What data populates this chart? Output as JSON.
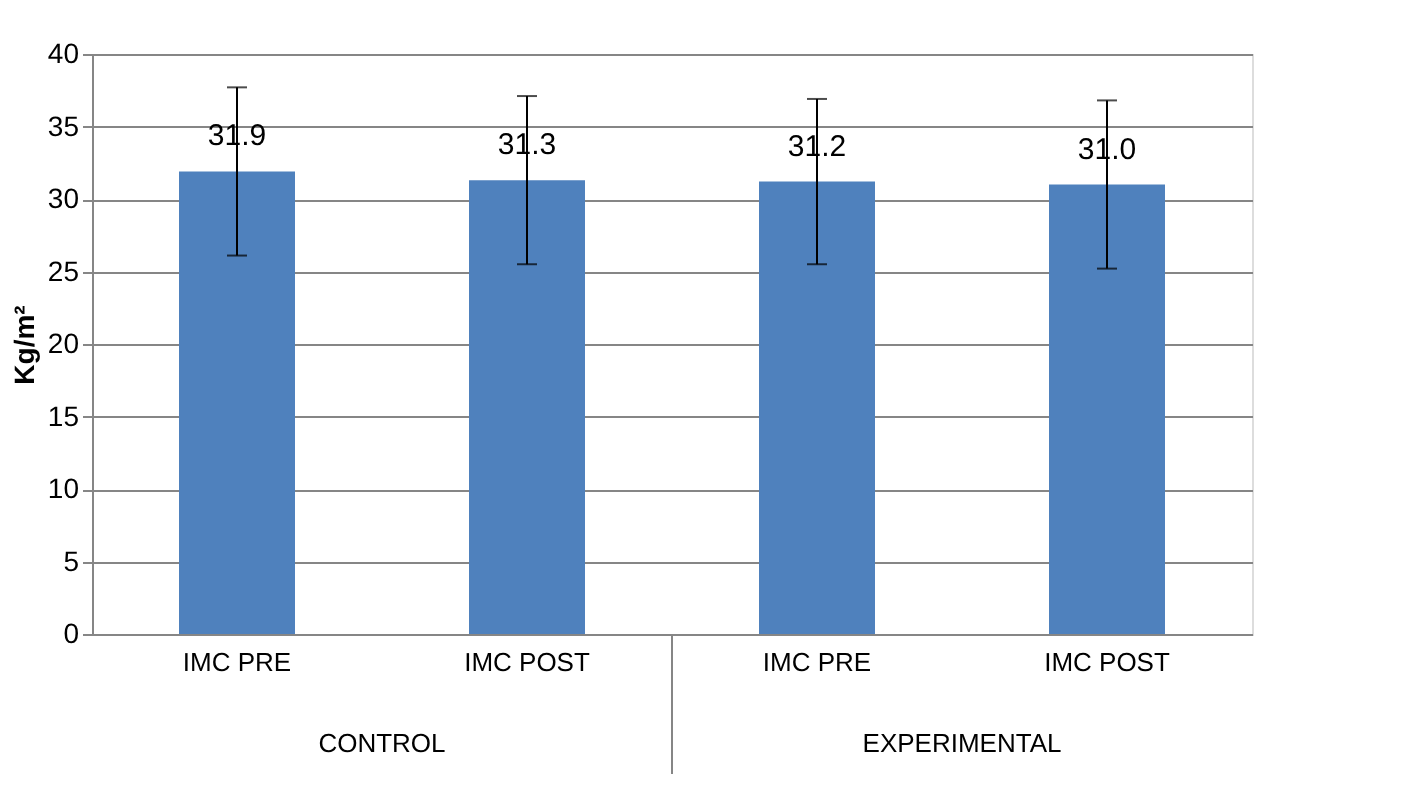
{
  "chart_data": {
    "type": "bar",
    "ylabel": "Kg/m²",
    "categories": [
      "IMC PRE",
      "IMC POST",
      "IMC PRE",
      "IMC POST"
    ],
    "values": [
      31.9,
      31.3,
      31.2,
      31.0
    ],
    "value_labels": [
      "31.9",
      "31.3",
      "31.2",
      "31.0"
    ],
    "errors": [
      5.8,
      5.8,
      5.7,
      5.8
    ],
    "color": "#4f81bd",
    "ylim": [
      0,
      40
    ],
    "yticks": [
      0,
      5,
      10,
      15,
      20,
      25,
      30,
      35,
      40
    ],
    "grid": "y",
    "annotations": [
      "CONTROL",
      "EXPERIMENTAL"
    ]
  }
}
